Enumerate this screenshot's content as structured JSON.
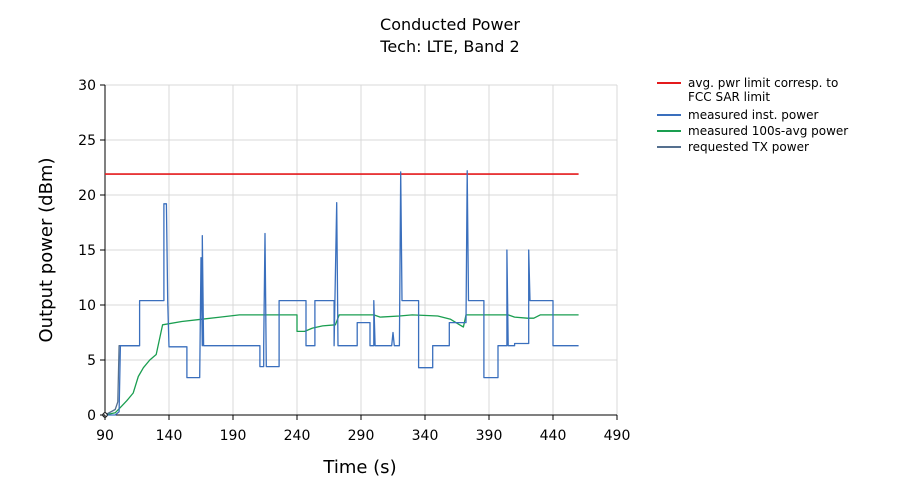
{
  "chart_data": {
    "type": "line",
    "title": "Conducted Power",
    "subtitle": "Tech: LTE, Band 2",
    "xlabel": "Time (s)",
    "ylabel": "Output power (dBm)",
    "xlim": [
      90,
      490
    ],
    "ylim": [
      0,
      30
    ],
    "xticks": [
      90,
      140,
      190,
      240,
      290,
      340,
      390,
      440,
      490
    ],
    "yticks": [
      0,
      5,
      10,
      15,
      20,
      25,
      30
    ],
    "grid": true,
    "legend_position": "right",
    "legend": [
      {
        "label": "avg. pwr limit corresp. to",
        "label2": "FCC SAR limit",
        "color": "#e41a1c"
      },
      {
        "label": "measured inst. power",
        "color": "#3a6fbd"
      },
      {
        "label": "measured 100s-avg power",
        "color": "#1a9e50"
      },
      {
        "label": "requested TX power",
        "color": "#55708f"
      }
    ],
    "series": [
      {
        "name": "avg. pwr limit corresp. to FCC SAR limit",
        "color": "#e41a1c",
        "points": [
          [
            90,
            21.9
          ],
          [
            460,
            21.9
          ]
        ]
      },
      {
        "name": "measured inst. power",
        "color": "#3a6fbd",
        "points": [
          [
            90,
            0
          ],
          [
            98,
            0
          ],
          [
            101,
            0.3
          ],
          [
            102,
            6.3
          ],
          [
            117,
            6.3
          ],
          [
            117,
            10.4
          ],
          [
            136,
            10.4
          ],
          [
            136,
            19.2
          ],
          [
            138,
            19.2
          ],
          [
            139,
            10.4
          ],
          [
            140,
            6.2
          ],
          [
            154,
            6.2
          ],
          [
            154,
            3.4
          ],
          [
            164,
            3.4
          ],
          [
            165,
            14.3
          ],
          [
            166,
            6.3
          ],
          [
            166,
            16.3
          ],
          [
            167,
            6.3
          ],
          [
            211,
            6.3
          ],
          [
            211,
            4.4
          ],
          [
            214,
            4.4
          ],
          [
            214,
            6.3
          ],
          [
            215,
            16.5
          ],
          [
            216,
            4.4
          ],
          [
            226,
            4.4
          ],
          [
            226,
            10.4
          ],
          [
            247,
            10.4
          ],
          [
            247,
            6.3
          ],
          [
            254,
            6.3
          ],
          [
            254,
            10.4
          ],
          [
            269,
            10.4
          ],
          [
            269,
            6.3
          ],
          [
            271,
            19.3
          ],
          [
            272,
            6.3
          ],
          [
            287,
            6.3
          ],
          [
            287,
            8.4
          ],
          [
            297,
            8.4
          ],
          [
            297,
            6.3
          ],
          [
            300,
            6.3
          ],
          [
            300,
            10.4
          ],
          [
            301,
            6.3
          ],
          [
            314,
            6.3
          ],
          [
            315,
            7.5
          ],
          [
            316,
            6.3
          ],
          [
            320,
            6.3
          ],
          [
            321,
            22.1
          ],
          [
            322,
            10.4
          ],
          [
            335,
            10.4
          ],
          [
            335,
            4.3
          ],
          [
            346,
            4.3
          ],
          [
            346,
            6.3
          ],
          [
            359,
            6.3
          ],
          [
            359,
            8.4
          ],
          [
            372,
            8.4
          ],
          [
            373,
            22.2
          ],
          [
            374,
            10.4
          ],
          [
            386,
            10.4
          ],
          [
            386,
            3.4
          ],
          [
            397,
            3.4
          ],
          [
            397,
            6.3
          ],
          [
            404,
            6.3
          ],
          [
            404,
            15.0
          ],
          [
            405,
            6.3
          ],
          [
            410,
            6.3
          ],
          [
            410,
            6.5
          ],
          [
            421,
            6.5
          ],
          [
            421,
            15.0
          ],
          [
            422,
            10.4
          ],
          [
            440,
            10.4
          ],
          [
            440,
            6.3
          ],
          [
            460,
            6.3
          ]
        ]
      },
      {
        "name": "measured 100s-avg power",
        "color": "#1a9e50",
        "points": [
          [
            90,
            0
          ],
          [
            98,
            0.2
          ],
          [
            103,
            0.8
          ],
          [
            107,
            1.3
          ],
          [
            112,
            2.0
          ],
          [
            116,
            3.5
          ],
          [
            120,
            4.3
          ],
          [
            125,
            5.0
          ],
          [
            130,
            5.5
          ],
          [
            135,
            8.2
          ],
          [
            150,
            8.5
          ],
          [
            165,
            8.7
          ],
          [
            180,
            8.9
          ],
          [
            195,
            9.1
          ],
          [
            210,
            9.1
          ],
          [
            225,
            9.1
          ],
          [
            240,
            9.1
          ],
          [
            240,
            7.6
          ],
          [
            246,
            7.6
          ],
          [
            252,
            7.9
          ],
          [
            260,
            8.1
          ],
          [
            270,
            8.2
          ],
          [
            273,
            9.1
          ],
          [
            300,
            9.1
          ],
          [
            305,
            8.9
          ],
          [
            320,
            9.0
          ],
          [
            330,
            9.1
          ],
          [
            350,
            9.0
          ],
          [
            360,
            8.7
          ],
          [
            367,
            8.2
          ],
          [
            370,
            8.0
          ],
          [
            372,
            9.1
          ],
          [
            390,
            9.1
          ],
          [
            405,
            9.1
          ],
          [
            410,
            8.9
          ],
          [
            420,
            8.8
          ],
          [
            425,
            8.8
          ],
          [
            430,
            9.1
          ],
          [
            460,
            9.1
          ]
        ]
      },
      {
        "name": "requested TX power",
        "color": "#55708f",
        "points": [
          [
            90,
            0
          ],
          [
            98,
            0.5
          ],
          [
            100,
            1.2
          ],
          [
            101,
            6.3
          ],
          [
            117,
            6.3
          ]
        ]
      }
    ]
  }
}
